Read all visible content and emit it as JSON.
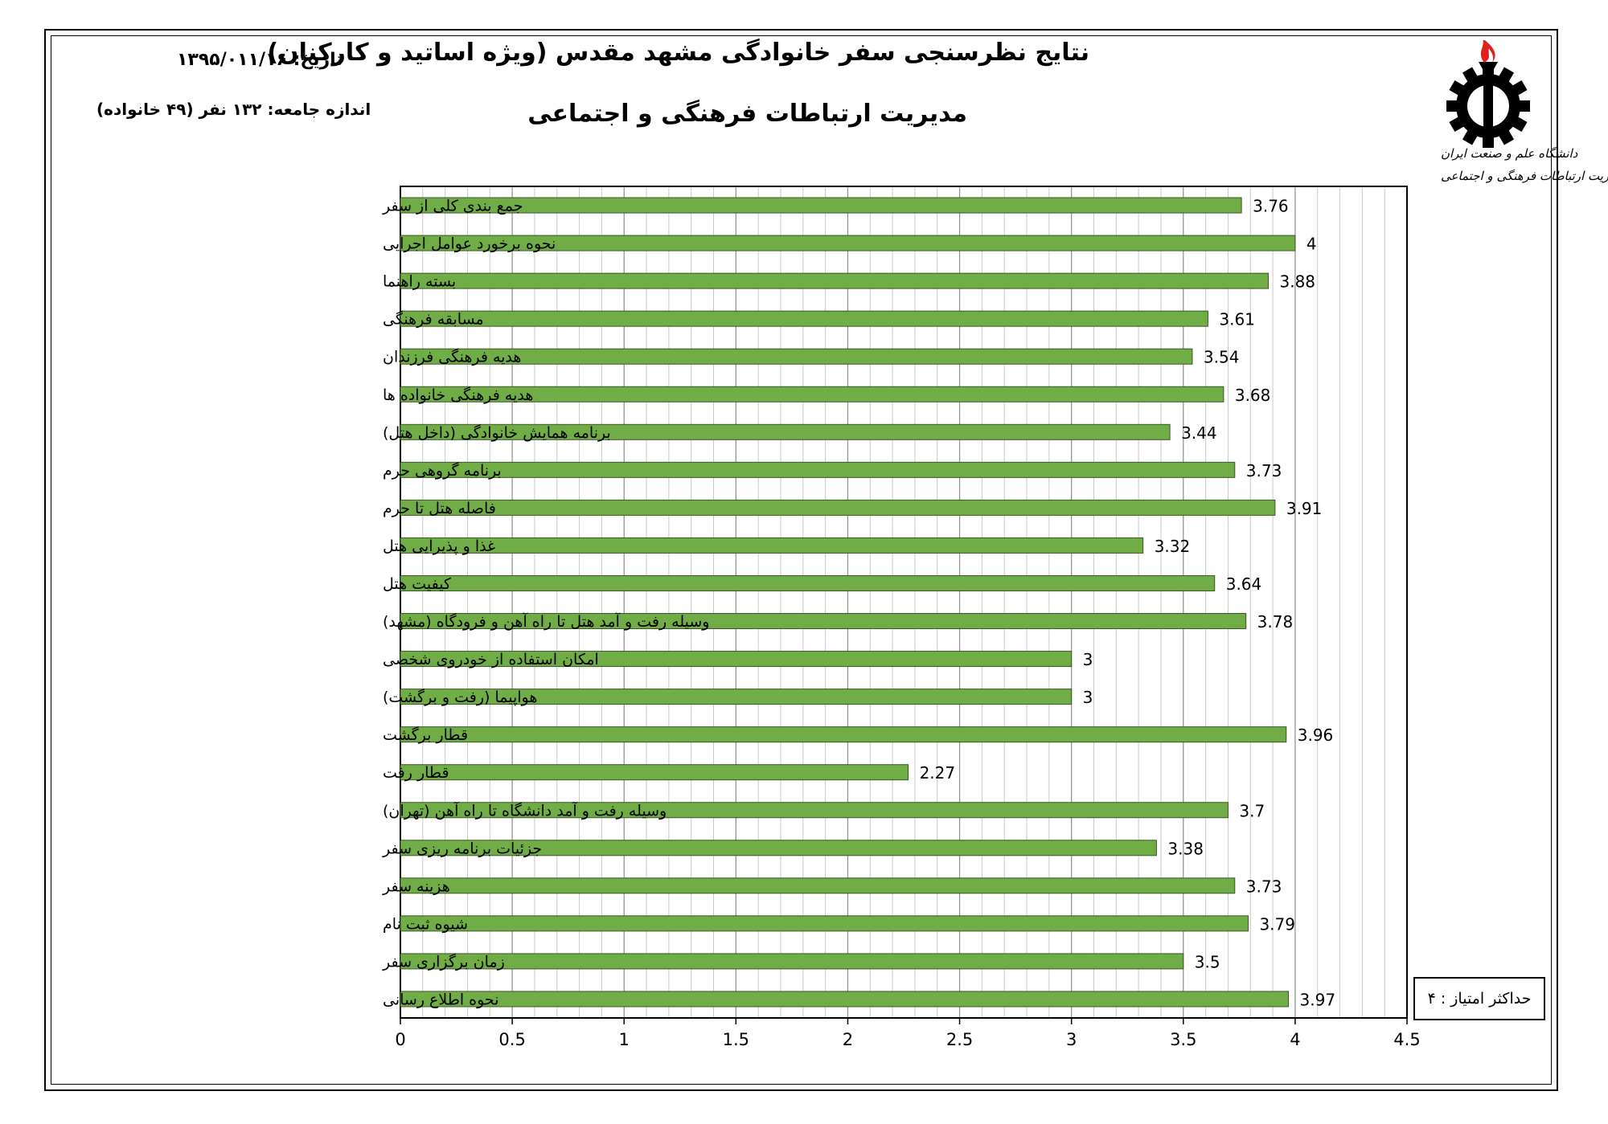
{
  "header": {
    "title_line1": "نتایج نظرسنجی سفر خانوادگی مشهد مقدس (ویژه اساتید و کارکنان)",
    "title_line2": "مدیریت ارتباطات فرهنگی و اجتماعی",
    "date": "تاریخ: ۱۳۹۵/۰۱۱/۱۶",
    "sample_size": "اندازه جامعه: ۱۳۲ نفر (۴۹ خانواده)"
  },
  "logo": {
    "icon": "gear-torch-logo",
    "text_line1": "دانشگاه علم و صنعت ایران",
    "text_line2": "مدیریت ارتباطات فرهنگی و اجتماعی",
    "colors": {
      "gear": "#000000",
      "flame": "#e0201b"
    }
  },
  "max_score_note": "حداکثر امتیاز : ۴",
  "chart_data": {
    "type": "bar",
    "orientation": "horizontal",
    "categories": [
      "جمع بندی کلی از سفر",
      "نحوه برخورد عوامل اجرایی",
      "بسته راهنما",
      "مسابقه فرهنگی",
      "هدیه فرهنگی فرزندان",
      "هدیه فرهنگی خانواده ها",
      "برنامه همایش خانوادگی (داخل هتل)",
      "برنامه گروهی حرم",
      "فاصله هتل تا حرم",
      "غذا و پذیرایی هتل",
      "کیفیت هتل",
      "وسیله رفت و آمد هتل تا راه آهن و فرودگاه (مشهد)",
      "امکان استفاده از خودروی شخصی",
      "هواپیما (رفت و برگشت)",
      "قطار برگشت",
      "قطار رفت",
      "وسیله رفت و آمد دانشگاه تا راه آهن (تهران)",
      "جزئیات برنامه ریزی سفر",
      "هزینه سفر",
      "شیوه ثبت نام",
      "زمان برگزاری سفر",
      "نحوه اطلاع رسانی"
    ],
    "values": [
      3.76,
      4,
      3.88,
      3.61,
      3.54,
      3.68,
      3.44,
      3.73,
      3.91,
      3.32,
      3.64,
      3.78,
      3,
      3,
      3.96,
      2.27,
      3.7,
      3.38,
      3.73,
      3.79,
      3.5,
      3.97
    ],
    "xlim": [
      0,
      4.5
    ],
    "xticks": [
      "0",
      "0.5",
      "1",
      "1.5",
      "2",
      "2.5",
      "3",
      "3.5",
      "4",
      "4.5"
    ],
    "grid": true,
    "data_labels": true,
    "bar_color": "#70ad47",
    "bar_border": "#385723"
  }
}
